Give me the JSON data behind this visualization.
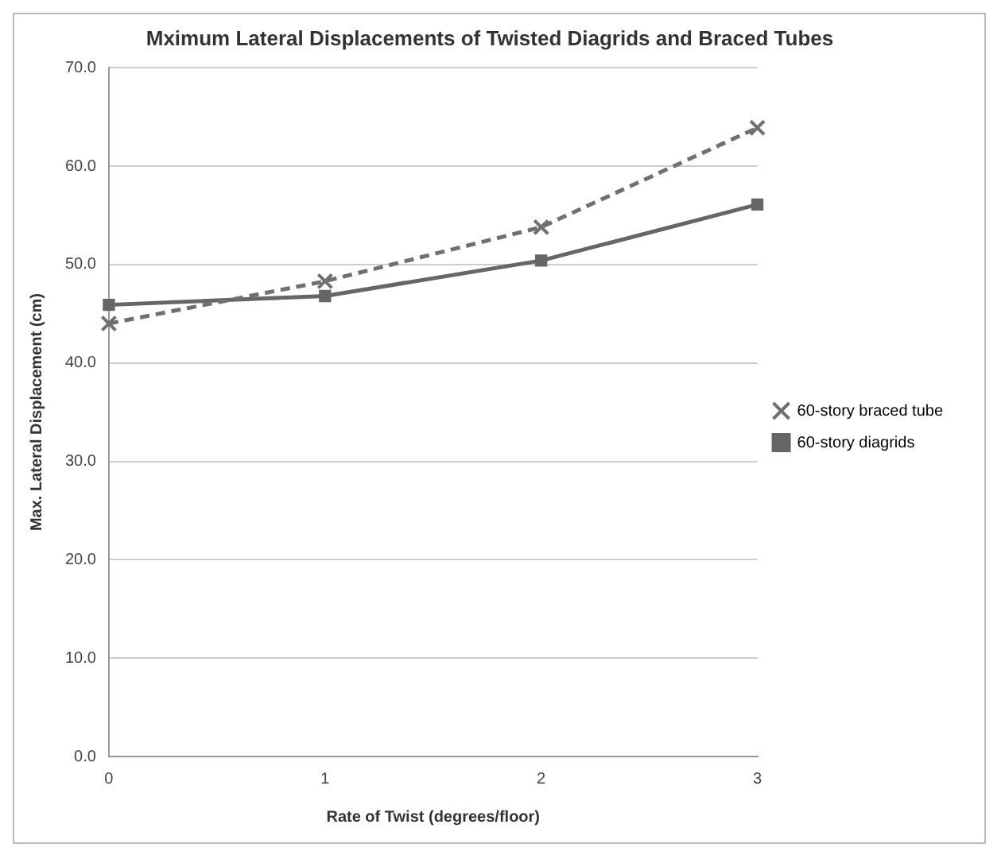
{
  "chart_data": {
    "type": "line",
    "title": "Mximum Lateral Displacements of Twisted Diagrids and Braced Tubes",
    "xlabel": "Rate of Twist (degrees/floor)",
    "ylabel": "Max. Lateral Displacement (cm)",
    "categories": [
      "0",
      "1",
      "2",
      "3"
    ],
    "series": [
      {
        "name": "60-story braced tube",
        "color": "#707070",
        "values": [
          44.0,
          48.3,
          53.8,
          63.9
        ],
        "marker": "cross",
        "line_style": "dashed"
      },
      {
        "name": "60-story diagrids",
        "color": "#666666",
        "values": [
          45.9,
          46.8,
          50.4,
          56.1
        ],
        "marker": "square",
        "line_style": "solid"
      }
    ],
    "ylim": [
      0,
      70
    ],
    "yticks": [
      {
        "value": 0,
        "label": "0.0"
      },
      {
        "value": 10,
        "label": "10.0"
      },
      {
        "value": 20,
        "label": "20.0"
      },
      {
        "value": 30,
        "label": "30.0"
      },
      {
        "value": 40,
        "label": "40.0"
      },
      {
        "value": 50,
        "label": "50.0"
      },
      {
        "value": 60,
        "label": "60.0"
      },
      {
        "value": 70,
        "label": "70.0"
      }
    ],
    "grid": "y",
    "legend": "right"
  }
}
